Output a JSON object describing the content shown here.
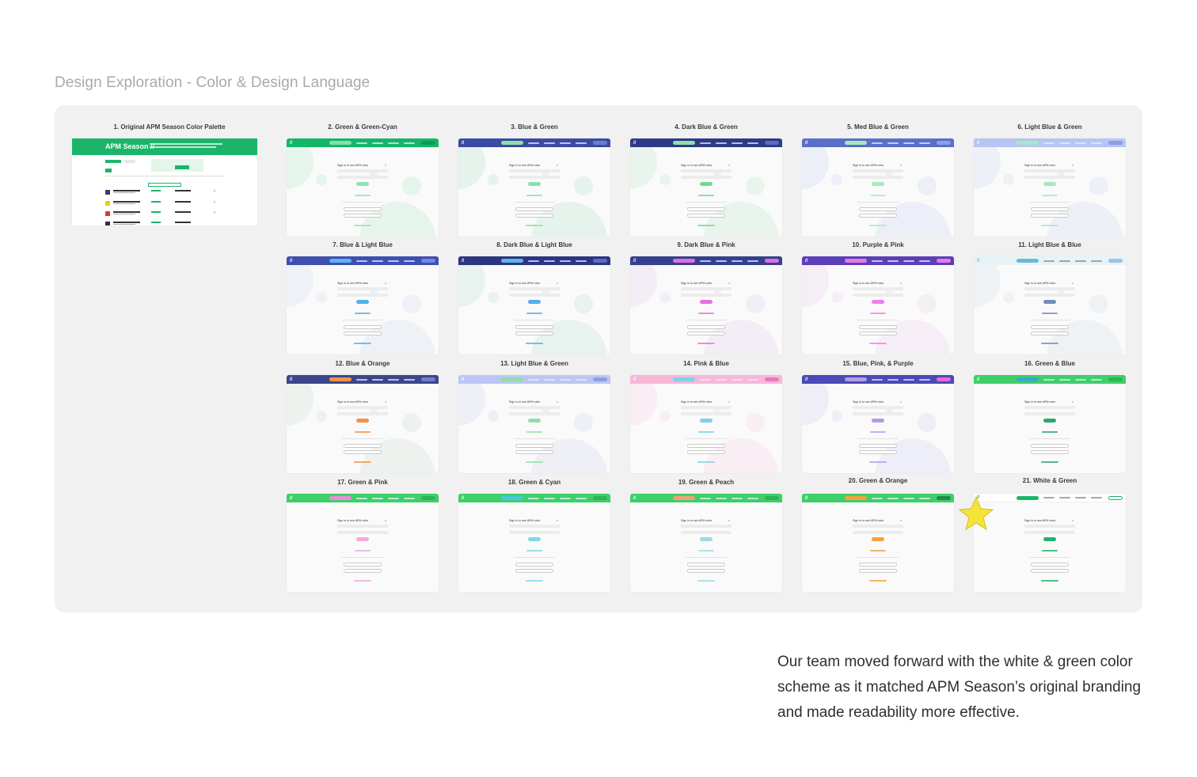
{
  "heading": "Design Exploration - Color & Design Language",
  "original": {
    "label": "1. Original APM Season Color Palette",
    "brand": "APM Season //",
    "primary": "#1bb56a"
  },
  "form_title": "Sign in to see APM roles",
  "logo_glyph": "//",
  "variants": [
    {
      "label": "2. Green & Green-Cyan",
      "nav": "#14b66a",
      "pill": "#7ee2b0",
      "signin": "#0f9956",
      "button": "#8fe3b4",
      "blob": "#e6f5ec",
      "text": "#ffffff",
      "bgwhite": false
    },
    {
      "label": "3. Blue & Green",
      "nav": "#3b4ba3",
      "pill": "#8fe0a8",
      "signin": "#6b7fd0",
      "button": "#8fe0a8",
      "blob": "#e6f3ec",
      "text": "#ffffff",
      "bgwhite": false
    },
    {
      "label": "4. Dark Blue & Green",
      "nav": "#2f3a86",
      "pill": "#8fe0a8",
      "signin": "#5b6bc0",
      "button": "#72d98f",
      "blob": "#e8f4ec",
      "text": "#ffffff",
      "bgwhite": false
    },
    {
      "label": "5. Med Blue & Green",
      "nav": "#5a6fc9",
      "pill": "#a8e8c0",
      "signin": "#8f9fe0",
      "button": "#a8e8c0",
      "blob": "#eceff8",
      "text": "#ffffff",
      "bgwhite": false
    },
    {
      "label": "6. Light Blue & Green",
      "nav": "#b8c4f2",
      "pill": "#a8e8c0",
      "signin": "#8d9de6",
      "button": "#a8e8c0",
      "blob": "#eef0f8",
      "text": "#ffffff",
      "bgwhite": false
    },
    {
      "label": "7. Blue & Light Blue",
      "nav": "#3f4fb0",
      "pill": "#5fb4ea",
      "signin": "#6b8ae0",
      "button": "#4fb0ea",
      "blob": "#eef2f6",
      "text": "#ffffff",
      "bgwhite": false
    },
    {
      "label": "8. Dark Blue & Light Blue",
      "nav": "#2b3582",
      "pill": "#5fb4ea",
      "signin": "#5b6bc0",
      "button": "#4fb0ea",
      "blob": "#e8f2ee",
      "text": "#ffffff",
      "bgwhite": false
    },
    {
      "label": "9. Dark Blue & Pink",
      "nav": "#34408e",
      "pill": "#e26de0",
      "signin": "#e26de0",
      "button": "#ea6de6",
      "blob": "#f3eef6",
      "text": "#ffffff",
      "bgwhite": false
    },
    {
      "label": "10. Purple & Pink",
      "nav": "#5b3fb8",
      "pill": "#e67ae6",
      "signin": "#e67ae6",
      "button": "#f07cef",
      "blob": "#f6eef6",
      "text": "#ffffff",
      "bgwhite": false
    },
    {
      "label": "11. Light Blue & Blue",
      "nav": "#e6f4f8",
      "pill": "#6fb7d3",
      "signin": "#9fc3e0",
      "button": "#6f8fb8",
      "blob": "#eef2f4",
      "text": "#555555",
      "bgwhite": false
    },
    {
      "label": "12. Blue & Orange",
      "nav": "#3d468c",
      "pill": "#f0934a",
      "signin": "#6b7fd0",
      "button": "#f0934a",
      "blob": "#eef2ee",
      "text": "#ffffff",
      "bgwhite": false
    },
    {
      "label": "13. Light Blue & Green",
      "nav": "#bcc6f4",
      "pill": "#8fe0a8",
      "signin": "#8d9de6",
      "button": "#8fe0a8",
      "blob": "#eef0f6",
      "text": "#ffffff",
      "bgwhite": false
    },
    {
      "label": "14. Pink & Blue",
      "nav": "#f7b8d8",
      "pill": "#7fd0ea",
      "signin": "#ea7ac0",
      "button": "#7fd0ea",
      "blob": "#f8eef4",
      "text": "#ffffff",
      "bgwhite": false
    },
    {
      "label": "15. Blue, Pink, & Purple",
      "nav": "#4a4ab8",
      "pill": "#b79ae6",
      "signin": "#e66ad6",
      "button": "#b79ae6",
      "blob": "#eeeef8",
      "text": "#ffffff",
      "bgwhite": false
    },
    {
      "label": "16. Green & Blue",
      "nav": "#3ecf6a",
      "pill": "#3aa8c8",
      "signin": "#2eb35a",
      "button": "#2aa86a",
      "blob": "#f5f5f5",
      "text": "#ffffff",
      "bgwhite": true
    },
    {
      "label": "17. Green & Pink",
      "nav": "#3ecf6a",
      "pill": "#ee8ad8",
      "signin": "#2eb35a",
      "button": "#f4a8de",
      "blob": "#f5f5f5",
      "text": "#ffffff",
      "bgwhite": true
    },
    {
      "label": "18. Green & Cyan",
      "nav": "#3ecf6a",
      "pill": "#4ac6d8",
      "signin": "#2eb35a",
      "button": "#7fd8e6",
      "blob": "#f5f5f5",
      "text": "#ffffff",
      "bgwhite": true
    },
    {
      "label": "19. Green & Peach",
      "nav": "#3ecf6a",
      "pill": "#f3a07a",
      "signin": "#2eb35a",
      "button": "#9fd8e6",
      "blob": "#f5f5f5",
      "text": "#ffffff",
      "bgwhite": true
    },
    {
      "label": "20. Green & Orange",
      "nav": "#3ecf6a",
      "pill": "#f5a13a",
      "signin": "#238a4a",
      "button": "#f5a13a",
      "blob": "#f5f5f5",
      "text": "#ffffff",
      "bgwhite": true
    },
    {
      "label": "21. White & Green",
      "nav": "#ffffff",
      "pill": "#1bb56a",
      "signin": "#ffffff",
      "button": "#1bb56a",
      "blob": "#ffffff",
      "text": "#333333",
      "bgwhite": true
    }
  ],
  "selected_icon": "star-icon",
  "footer": "Our team moved forward with the white & green color scheme as it matched APM Season’s original branding and made readability more effective."
}
